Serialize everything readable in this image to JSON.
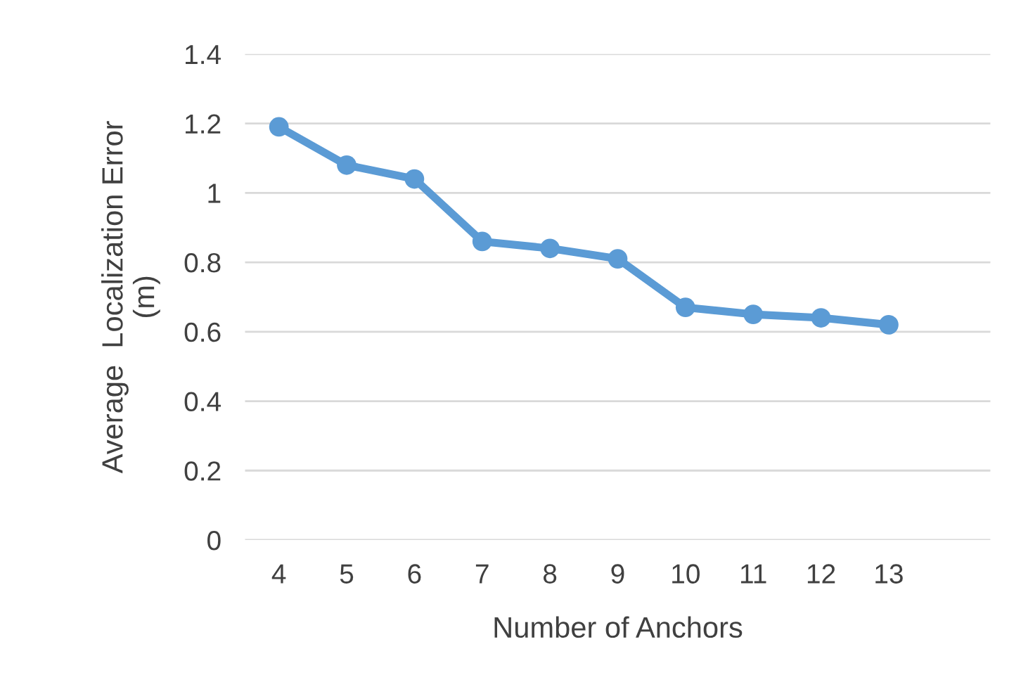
{
  "chart_data": {
    "type": "line",
    "xlabel": "Number of Anchors",
    "ylabel": "Average  Localization Error\n(m)",
    "categories": [
      "4",
      "5",
      "6",
      "7",
      "8",
      "9",
      "10",
      "11",
      "12",
      "13"
    ],
    "series": [
      {
        "color": "#5b9bd5",
        "values": [
          1.19,
          1.08,
          1.04,
          0.86,
          0.84,
          0.81,
          0.67,
          0.65,
          0.64,
          0.62
        ]
      }
    ],
    "ylim": [
      0,
      1.4
    ],
    "yticks": [
      0,
      0.2,
      0.4,
      0.6,
      0.8,
      1,
      1.2,
      1.4
    ],
    "grid": "y",
    "marker": "circle",
    "line_style": "solid"
  }
}
